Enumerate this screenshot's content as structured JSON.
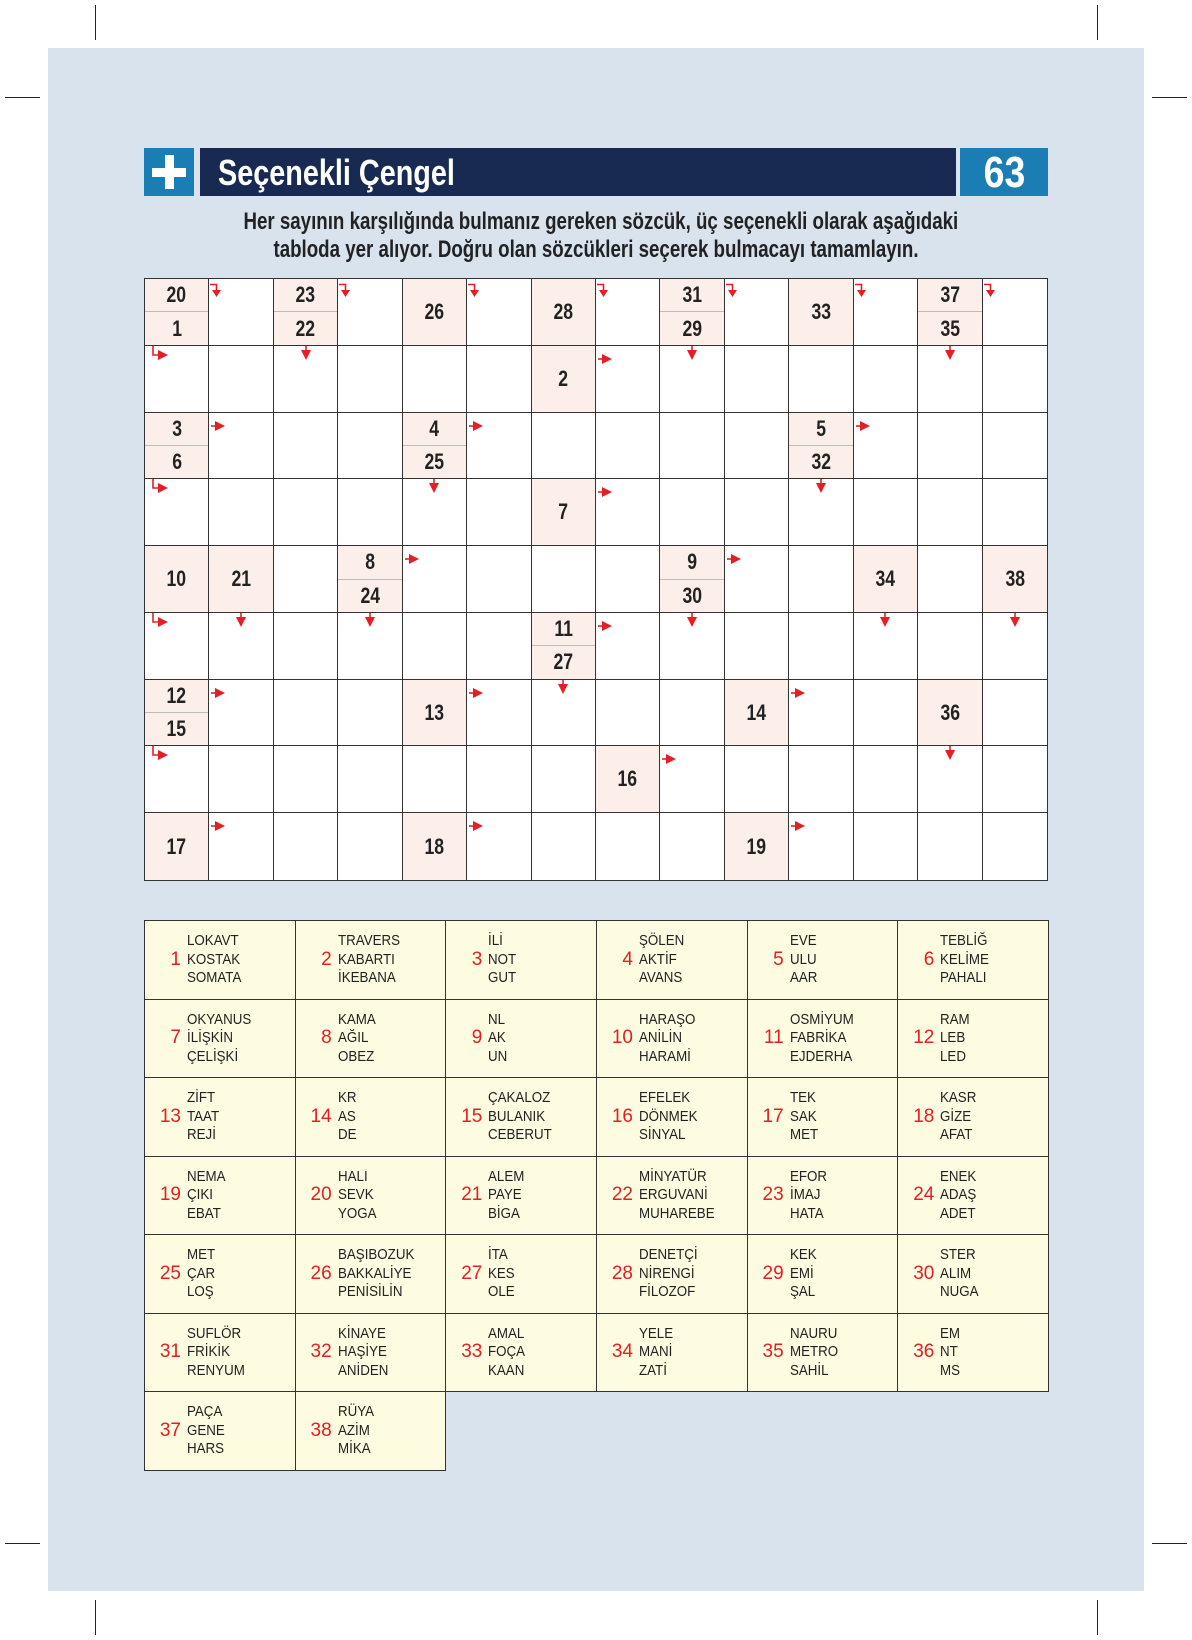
{
  "header": {
    "title": "Seçenekli Çengel",
    "page_number": "63",
    "plus_icon": "plus-icon"
  },
  "instructions": [
    "Her sayının karşılığında bulmanız gereken sözcük, üç seçenekli olarak aşağıdaki",
    "tabloda yer alıyor. Doğru olan sözcükleri seçerek bulmacayı tamamlayın."
  ],
  "colors": {
    "title_bar": "#182a52",
    "accent_blue": "#1a7db4",
    "arrow_red": "#e31e24",
    "clue_cell": "#fcefe9",
    "legend_bg": "#fdfbe0",
    "page_bg": "#d9e3ee"
  },
  "grid": {
    "rows": [
      [
        {
          "t": "20",
          "b": "1"
        },
        {
          "a": "down-bent"
        },
        {
          "t": "23",
          "b": "22"
        },
        {
          "a": "down-bent"
        },
        {
          "c": "26"
        },
        {
          "a": "down-bent"
        },
        {
          "c": "28"
        },
        {
          "a": "down-bent"
        },
        {
          "t": "31",
          "b": "29"
        },
        {
          "a": "down-bent"
        },
        {
          "c": "33"
        },
        {
          "a": "down-bent"
        },
        {
          "t": "37",
          "b": "35"
        },
        {
          "a": "down-bent"
        }
      ],
      [
        {
          "a": "bent-right"
        },
        {},
        {
          "a": "down"
        },
        {},
        {},
        {},
        {
          "c": "2"
        },
        {
          "a": "right"
        },
        {
          "a": "down"
        },
        {},
        {},
        {},
        {
          "a": "down"
        },
        {}
      ],
      [
        {
          "t": "3",
          "b": "6"
        },
        {
          "a": "right"
        },
        {},
        {},
        {
          "t": "4",
          "b": "25"
        },
        {
          "a": "right"
        },
        {},
        {},
        {},
        {},
        {
          "t": "5",
          "b": "32"
        },
        {
          "a": "right"
        },
        {},
        {}
      ],
      [
        {
          "a": "bent-right"
        },
        {},
        {},
        {},
        {
          "a": "down"
        },
        {},
        {
          "c": "7"
        },
        {
          "a": "right"
        },
        {},
        {},
        {
          "a": "down"
        },
        {},
        {},
        {}
      ],
      [
        {
          "c": "10"
        },
        {
          "c": "21"
        },
        {},
        {
          "t": "8",
          "b": "24"
        },
        {
          "a": "right"
        },
        {},
        {},
        {},
        {
          "t": "9",
          "b": "30"
        },
        {
          "a": "right"
        },
        {},
        {
          "c": "34"
        },
        {},
        {
          "c": "38"
        }
      ],
      [
        {
          "a": "bent-right"
        },
        {
          "a": "down"
        },
        {},
        {
          "a": "down"
        },
        {},
        {},
        {
          "t": "11",
          "b": "27"
        },
        {
          "a": "right"
        },
        {
          "a": "down"
        },
        {},
        {},
        {
          "a": "down"
        },
        {},
        {
          "a": "down"
        }
      ],
      [
        {
          "t": "12",
          "b": "15"
        },
        {
          "a": "right"
        },
        {},
        {},
        {
          "c": "13"
        },
        {
          "a": "right"
        },
        {
          "a": "down"
        },
        {},
        {},
        {
          "c": "14"
        },
        {
          "a": "right"
        },
        {},
        {
          "c": "36"
        },
        {}
      ],
      [
        {
          "a": "bent-right"
        },
        {},
        {},
        {},
        {},
        {},
        {},
        {
          "c": "16"
        },
        {
          "a": "right"
        },
        {},
        {},
        {},
        {
          "a": "down"
        },
        {}
      ],
      [
        {
          "c": "17"
        },
        {
          "a": "right"
        },
        {},
        {},
        {
          "c": "18"
        },
        {
          "a": "right"
        },
        {},
        {},
        {},
        {
          "c": "19"
        },
        {
          "a": "right"
        },
        {},
        {},
        {}
      ]
    ]
  },
  "options": [
    {
      "n": "1",
      "w": [
        "LOKAVT",
        "KOSTAK",
        "SOMATA"
      ]
    },
    {
      "n": "2",
      "w": [
        "TRAVERS",
        "KABARTI",
        "İKEBANA"
      ]
    },
    {
      "n": "3",
      "w": [
        "İLİ",
        "NOT",
        "GUT"
      ]
    },
    {
      "n": "4",
      "w": [
        "ŞÖLEN",
        "AKTİF",
        "AVANS"
      ]
    },
    {
      "n": "5",
      "w": [
        "EVE",
        "ULU",
        "AAR"
      ]
    },
    {
      "n": "6",
      "w": [
        "TEBLİĞ",
        "KELİME",
        "PAHALI"
      ]
    },
    {
      "n": "7",
      "w": [
        "OKYANUS",
        "İLİŞKİN",
        "ÇELİŞKİ"
      ]
    },
    {
      "n": "8",
      "w": [
        "KAMA",
        "AĞIL",
        "OBEZ"
      ]
    },
    {
      "n": "9",
      "w": [
        "NL",
        "AK",
        "UN"
      ]
    },
    {
      "n": "10",
      "w": [
        "HARAŞO",
        "ANİLİN",
        "HARAMİ"
      ]
    },
    {
      "n": "11",
      "w": [
        "OSMİYUM",
        "FABRİKA",
        "EJDERHA"
      ]
    },
    {
      "n": "12",
      "w": [
        "RAM",
        "LEB",
        "LED"
      ]
    },
    {
      "n": "13",
      "w": [
        "ZİFT",
        "TAAT",
        "REJİ"
      ]
    },
    {
      "n": "14",
      "w": [
        "KR",
        "AS",
        "DE"
      ]
    },
    {
      "n": "15",
      "w": [
        "ÇAKALOZ",
        "BULANIK",
        "CEBERUT"
      ]
    },
    {
      "n": "16",
      "w": [
        "EFELEK",
        "DÖNMEK",
        "SİNYAL"
      ]
    },
    {
      "n": "17",
      "w": [
        "TEK",
        "SAK",
        "MET"
      ]
    },
    {
      "n": "18",
      "w": [
        "KASR",
        "GİZE",
        "AFAT"
      ]
    },
    {
      "n": "19",
      "w": [
        "NEMA",
        "ÇIKI",
        "EBAT"
      ]
    },
    {
      "n": "20",
      "w": [
        "HALI",
        "SEVK",
        "YOGA"
      ]
    },
    {
      "n": "21",
      "w": [
        "ALEM",
        "PAYE",
        "BİGA"
      ]
    },
    {
      "n": "22",
      "w": [
        "MİNYATÜR",
        "ERGUVANİ",
        "MUHAREBE"
      ]
    },
    {
      "n": "23",
      "w": [
        "EFOR",
        "İMAJ",
        "HATA"
      ]
    },
    {
      "n": "24",
      "w": [
        "ENEK",
        "ADAŞ",
        "ADET"
      ]
    },
    {
      "n": "25",
      "w": [
        "MET",
        "ÇAR",
        "LOŞ"
      ]
    },
    {
      "n": "26",
      "w": [
        "BAŞIBOZUK",
        "BAKKALİYE",
        "PENİSİLİN"
      ]
    },
    {
      "n": "27",
      "w": [
        "İTA",
        "KES",
        "OLE"
      ]
    },
    {
      "n": "28",
      "w": [
        "DENETÇİ",
        "NİRENGİ",
        "FİLOZOF"
      ]
    },
    {
      "n": "29",
      "w": [
        "KEK",
        "EMİ",
        "ŞAL"
      ]
    },
    {
      "n": "30",
      "w": [
        "STER",
        "ALIM",
        "NUGA"
      ]
    },
    {
      "n": "31",
      "w": [
        "SUFLÖR",
        "FRİKİK",
        "RENYUM"
      ]
    },
    {
      "n": "32",
      "w": [
        "KİNAYE",
        "HAŞİYE",
        "ANİDEN"
      ]
    },
    {
      "n": "33",
      "w": [
        "AMAL",
        "FOÇA",
        "KAAN"
      ]
    },
    {
      "n": "34",
      "w": [
        "YELE",
        "MANİ",
        "ZATİ"
      ]
    },
    {
      "n": "35",
      "w": [
        "NAURU",
        "METRO",
        "SAHİL"
      ]
    },
    {
      "n": "36",
      "w": [
        "EM",
        "NT",
        "MS"
      ]
    },
    {
      "n": "37",
      "w": [
        "PAÇA",
        "GENE",
        "HARS"
      ]
    },
    {
      "n": "38",
      "w": [
        "RÜYA",
        "AZİM",
        "MİKA"
      ]
    }
  ]
}
